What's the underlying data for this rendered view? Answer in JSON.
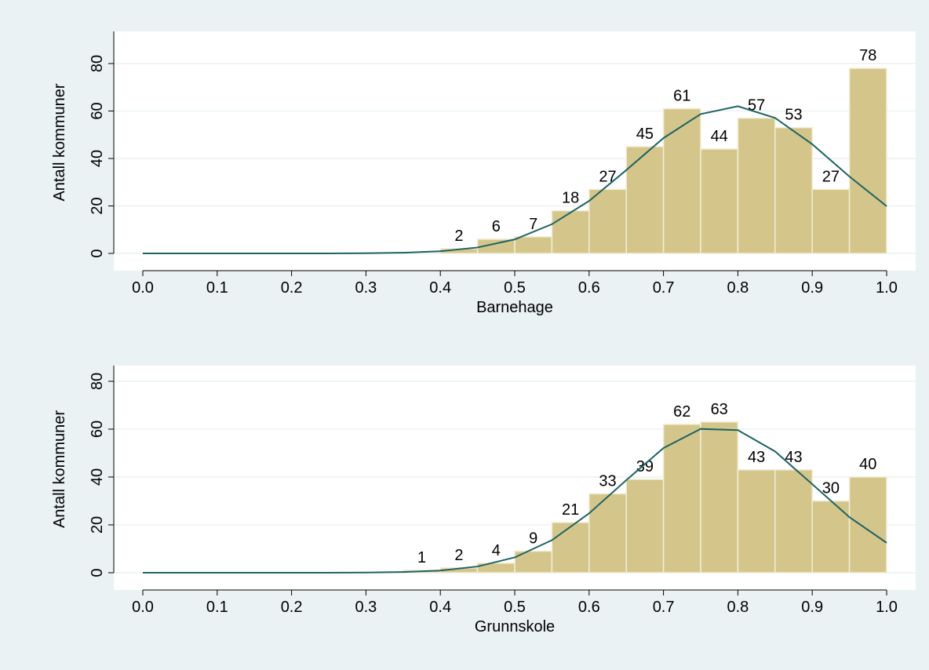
{
  "chart_data": [
    {
      "type": "histogram",
      "xlabel": "Barnehage",
      "ylabel": "Antall kommuner",
      "bins": [
        0.4,
        0.45,
        0.5,
        0.55,
        0.6,
        0.65,
        0.7,
        0.75,
        0.8,
        0.85,
        0.9,
        0.95,
        1.0
      ],
      "values": [
        2,
        6,
        7,
        18,
        27,
        45,
        61,
        44,
        57,
        53,
        27,
        78
      ],
      "color": "#d4c68b",
      "curve": {
        "x": [
          0,
          0.05,
          0.1,
          0.15,
          0.2,
          0.25,
          0.3,
          0.35,
          0.4,
          0.45,
          0.5,
          0.55,
          0.6,
          0.65,
          0.7,
          0.75,
          0.8,
          0.85,
          0.9,
          0.95,
          1.0
        ],
        "values": [
          0,
          0,
          0,
          0,
          0,
          0,
          0.1,
          0.3,
          0.9,
          2.5,
          5.9,
          12.3,
          22.1,
          35.1,
          48.6,
          58.7,
          62.0,
          57.1,
          46.0,
          32.4,
          19.9
        ],
        "color": "#1f6363"
      },
      "xlim": [
        0,
        1
      ],
      "ylim": [
        0,
        80
      ],
      "xticks": [
        {
          "value": 0,
          "label": "0.0"
        },
        0.1,
        0.2,
        0.3,
        0.4,
        0.5,
        0.6,
        0.7,
        0.8,
        0.9,
        {
          "value": 1,
          "label": "1.0"
        }
      ],
      "yticks": [
        0,
        20,
        40,
        60,
        80
      ],
      "grid": true
    },
    {
      "type": "histogram",
      "xlabel": "Grunnskole",
      "ylabel": "Antall kommuner",
      "bins": [
        0.35,
        0.4,
        0.45,
        0.5,
        0.55,
        0.6,
        0.65,
        0.7,
        0.75,
        0.8,
        0.85,
        0.9,
        0.95,
        1.0
      ],
      "values": [
        1,
        2,
        4,
        9,
        21,
        33,
        39,
        62,
        63,
        43,
        43,
        30,
        40
      ],
      "color": "#d4c68b",
      "curve": {
        "x": [
          0,
          0.05,
          0.1,
          0.15,
          0.2,
          0.25,
          0.3,
          0.35,
          0.4,
          0.45,
          0.5,
          0.55,
          0.6,
          0.65,
          0.7,
          0.75,
          0.8,
          0.85,
          0.9,
          0.95,
          1.0
        ],
        "values": [
          0,
          0,
          0,
          0,
          0,
          0,
          0.1,
          0.3,
          0.9,
          2.6,
          6.4,
          13.6,
          24.8,
          38.7,
          52.1,
          60.1,
          59.6,
          50.7,
          37.0,
          23.2,
          12.5
        ],
        "color": "#1f6363"
      },
      "xlim": [
        0,
        1
      ],
      "ylim": [
        0,
        80
      ],
      "xticks": [
        {
          "value": 0,
          "label": "0.0"
        },
        0.1,
        0.2,
        0.3,
        0.4,
        0.5,
        0.6,
        0.7,
        0.8,
        0.9,
        {
          "value": 1,
          "label": "1.0"
        }
      ],
      "yticks": [
        0,
        20,
        40,
        60,
        80
      ],
      "grid": true
    }
  ]
}
